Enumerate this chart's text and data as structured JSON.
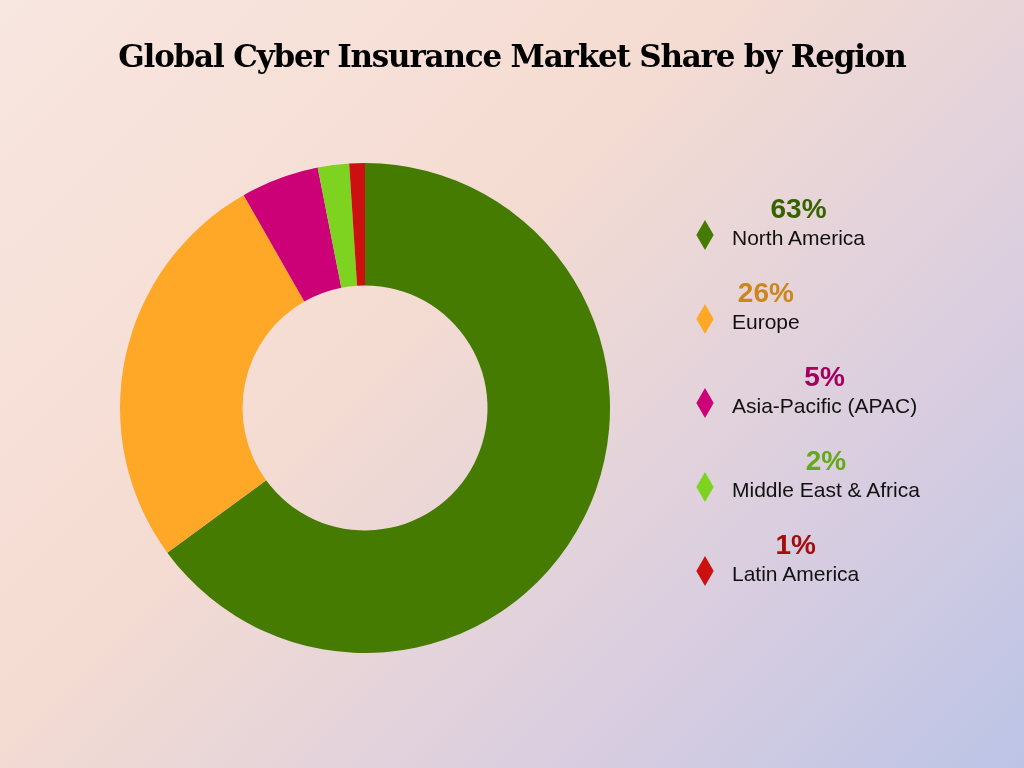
{
  "chart_data": {
    "type": "donut",
    "title": "Global Cyber Insurance Market Share by Region",
    "categories": [
      "North America",
      "Europe",
      "Asia-Pacific (APAC)",
      "Middle East & Africa",
      "Latin America"
    ],
    "values": [
      63,
      26,
      5,
      2,
      1
    ],
    "colors": [
      "#447b00",
      "#ffa726",
      "#cc0077",
      "#7ed321",
      "#cc1010"
    ],
    "value_labels": [
      "63%",
      "26%",
      "5%",
      "2%",
      "1%"
    ],
    "legend": "right"
  }
}
